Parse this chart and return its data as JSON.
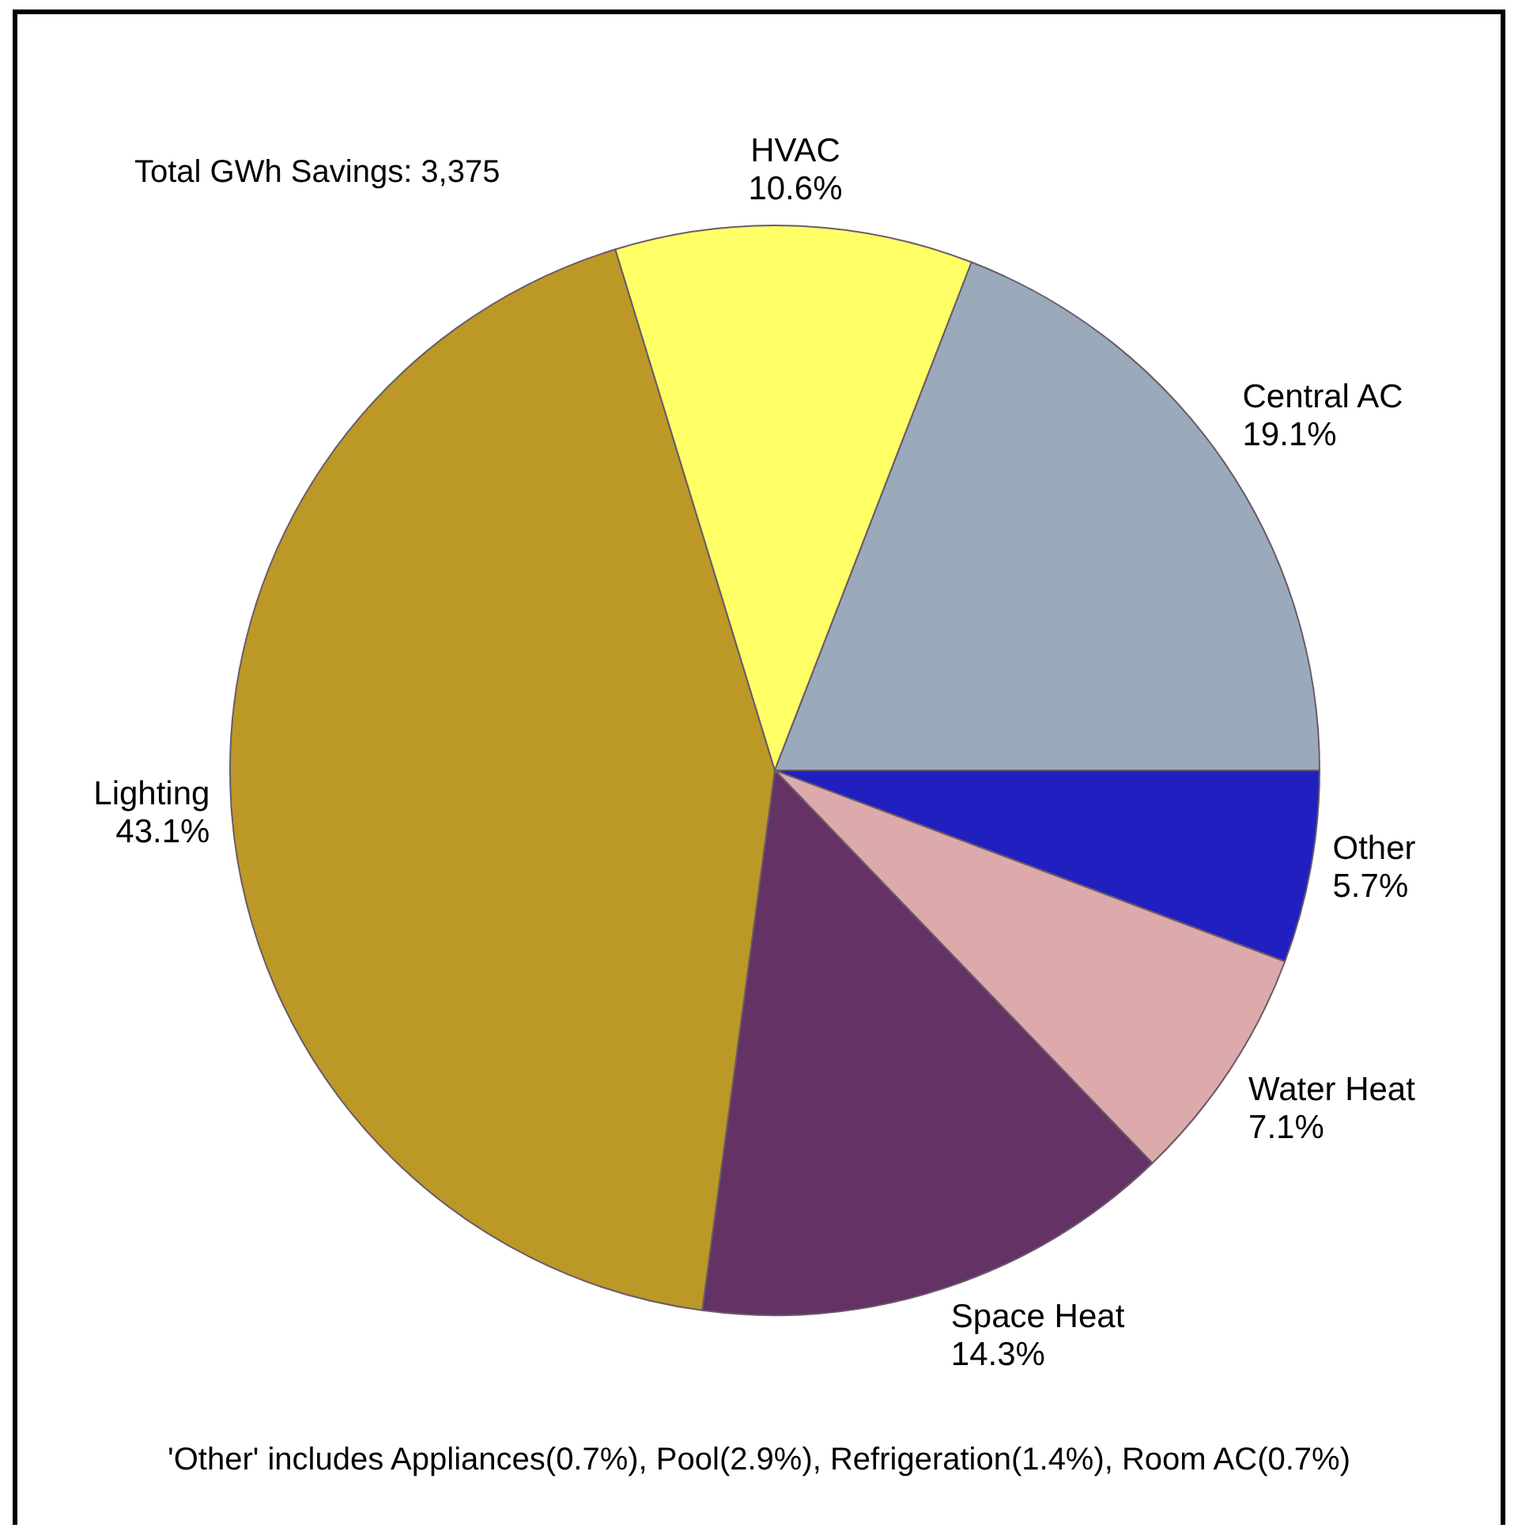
{
  "chart_data": {
    "type": "pie",
    "categories": [
      "Other",
      "Water Heat",
      "Space Heat",
      "Lighting",
      "HVAC",
      "Central AC"
    ],
    "values": [
      5.7,
      7.1,
      14.3,
      43.1,
      10.6,
      19.1
    ],
    "value_labels": [
      "5.7%",
      "7.1%",
      "14.3%",
      "43.1%",
      "10.6%",
      "19.1%"
    ],
    "colors": [
      "#2020c0",
      "#dcaaaa",
      "#643264",
      "#bc9826",
      "#ffff66",
      "#9aaaba"
    ],
    "legend": false,
    "annotations": [
      "Total GWh Savings: 3,375",
      "'Other' includes Appliances(0.7%), Pool(2.9%), Refrigeration(1.4%), Room AC(0.7%)"
    ]
  }
}
